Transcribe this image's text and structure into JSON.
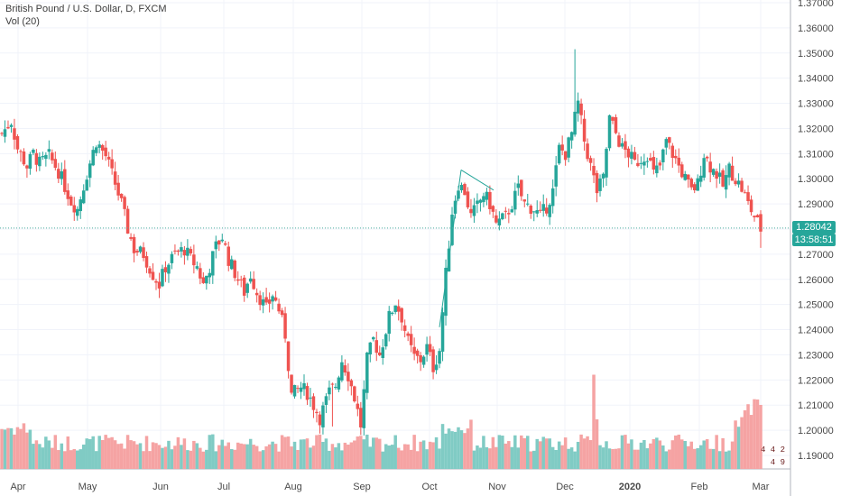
{
  "header": {
    "title": "British Pound / U.S. Dollar, D, FXCM",
    "volume_label": "Vol (20)"
  },
  "colors": {
    "up": "#26a69a",
    "down": "#ef5350",
    "up_vol": "#80cbc4",
    "down_vol": "#f5a3a3",
    "grid": "#f0f3fa",
    "axis_line": "#b2b5be",
    "last_price_line": "#4caf9f",
    "trendline": "#26a69a"
  },
  "price_axis": {
    "ticks": [
      "1.37000",
      "1.36000",
      "1.35000",
      "1.34000",
      "1.33000",
      "1.32000",
      "1.31000",
      "1.30000",
      "1.29000",
      "1.28000",
      "1.27000",
      "1.26000",
      "1.25000",
      "1.24000",
      "1.23000",
      "1.22000",
      "1.21000",
      "1.20000",
      "1.19000"
    ]
  },
  "last_price": {
    "price": "1.28042",
    "countdown": "13:58:51"
  },
  "volume_badge": {
    "line1": "4 4 2",
    "line2": "4 9"
  },
  "chart_data": {
    "type": "candlestick",
    "symbol": "British Pound / U.S. Dollar",
    "interval": "D",
    "source": "FXCM",
    "x_labels": [
      "Apr",
      "May",
      "Jun",
      "Jul",
      "Aug",
      "Sep",
      "Oct",
      "Nov",
      "Dec",
      "2020",
      "Feb",
      "Mar"
    ],
    "ylim": [
      1.185,
      1.37
    ],
    "y_ticks": [
      1.37,
      1.36,
      1.35,
      1.34,
      1.33,
      1.32,
      1.31,
      1.3,
      1.29,
      1.28,
      1.27,
      1.26,
      1.25,
      1.24,
      1.23,
      1.22,
      1.21,
      1.2,
      1.19
    ],
    "last_price": 1.28042,
    "close_path": [
      [
        0,
        1.318
      ],
      [
        3,
        1.323
      ],
      [
        5,
        1.312
      ],
      [
        8,
        1.305
      ],
      [
        10,
        1.31
      ],
      [
        12,
        1.306
      ],
      [
        15,
        1.309
      ],
      [
        18,
        1.303
      ],
      [
        20,
        1.297
      ],
      [
        22,
        1.291
      ],
      [
        24,
        1.288
      ],
      [
        27,
        1.302
      ],
      [
        30,
        1.315
      ],
      [
        33,
        1.309
      ],
      [
        36,
        1.298
      ],
      [
        38,
        1.29
      ],
      [
        40,
        1.28
      ],
      [
        42,
        1.272
      ],
      [
        45,
        1.27
      ],
      [
        48,
        1.262
      ],
      [
        50,
        1.258
      ],
      [
        52,
        1.265
      ],
      [
        55,
        1.27
      ],
      [
        58,
        1.272
      ],
      [
        60,
        1.268
      ],
      [
        62,
        1.265
      ],
      [
        64,
        1.258
      ],
      [
        66,
        1.265
      ],
      [
        68,
        1.273
      ],
      [
        70,
        1.277
      ],
      [
        72,
        1.268
      ],
      [
        75,
        1.26
      ],
      [
        77,
        1.255
      ],
      [
        79,
        1.262
      ],
      [
        81,
        1.255
      ],
      [
        84,
        1.248
      ],
      [
        86,
        1.254
      ],
      [
        88,
        1.248
      ],
      [
        90,
        1.238
      ],
      [
        92,
        1.214
      ],
      [
        95,
        1.217
      ],
      [
        97,
        1.215
      ],
      [
        99,
        1.21
      ],
      [
        101,
        1.205
      ],
      [
        104,
        1.215
      ],
      [
        106,
        1.218
      ],
      [
        108,
        1.228
      ],
      [
        110,
        1.222
      ],
      [
        112,
        1.213
      ],
      [
        114,
        1.202
      ],
      [
        116,
        1.228
      ],
      [
        118,
        1.236
      ],
      [
        120,
        1.23
      ],
      [
        123,
        1.245
      ],
      [
        125,
        1.251
      ],
      [
        127,
        1.245
      ],
      [
        129,
        1.235
      ],
      [
        131,
        1.229
      ],
      [
        133,
        1.228
      ],
      [
        135,
        1.233
      ],
      [
        137,
        1.225
      ],
      [
        139,
        1.232
      ],
      [
        141,
        1.262
      ],
      [
        143,
        1.287
      ],
      [
        145,
        1.298
      ],
      [
        147,
        1.295
      ],
      [
        149,
        1.285
      ],
      [
        151,
        1.289
      ],
      [
        153,
        1.294
      ],
      [
        155,
        1.29
      ],
      [
        157,
        1.282
      ],
      [
        160,
        1.285
      ],
      [
        162,
        1.29
      ],
      [
        164,
        1.296
      ],
      [
        166,
        1.29
      ],
      [
        169,
        1.288
      ],
      [
        171,
        1.285
      ],
      [
        173,
        1.289
      ],
      [
        175,
        1.295
      ],
      [
        177,
        1.312
      ],
      [
        179,
        1.31
      ],
      [
        181,
        1.318
      ],
      [
        183,
        1.33
      ],
      [
        185,
        1.315
      ],
      [
        187,
        1.305
      ],
      [
        189,
        1.295
      ],
      [
        191,
        1.3
      ],
      [
        193,
        1.324
      ],
      [
        195,
        1.318
      ],
      [
        197,
        1.312
      ],
      [
        199,
        1.31
      ],
      [
        201,
        1.306
      ],
      [
        203,
        1.308
      ],
      [
        205,
        1.31
      ],
      [
        207,
        1.302
      ],
      [
        209,
        1.305
      ],
      [
        211,
        1.315
      ],
      [
        213,
        1.31
      ],
      [
        215,
        1.305
      ],
      [
        217,
        1.3
      ],
      [
        219,
        1.295
      ],
      [
        221,
        1.298
      ],
      [
        223,
        1.31
      ],
      [
        225,
        1.305
      ],
      [
        227,
        1.302
      ],
      [
        229,
        1.297
      ],
      [
        231,
        1.304
      ],
      [
        233,
        1.3
      ],
      [
        235,
        1.296
      ],
      [
        237,
        1.29
      ],
      [
        239,
        1.285
      ],
      [
        241,
        1.28
      ]
    ],
    "notable_points": {
      "high": 1.3515,
      "low": 1.2015,
      "last": 1.28042
    }
  }
}
